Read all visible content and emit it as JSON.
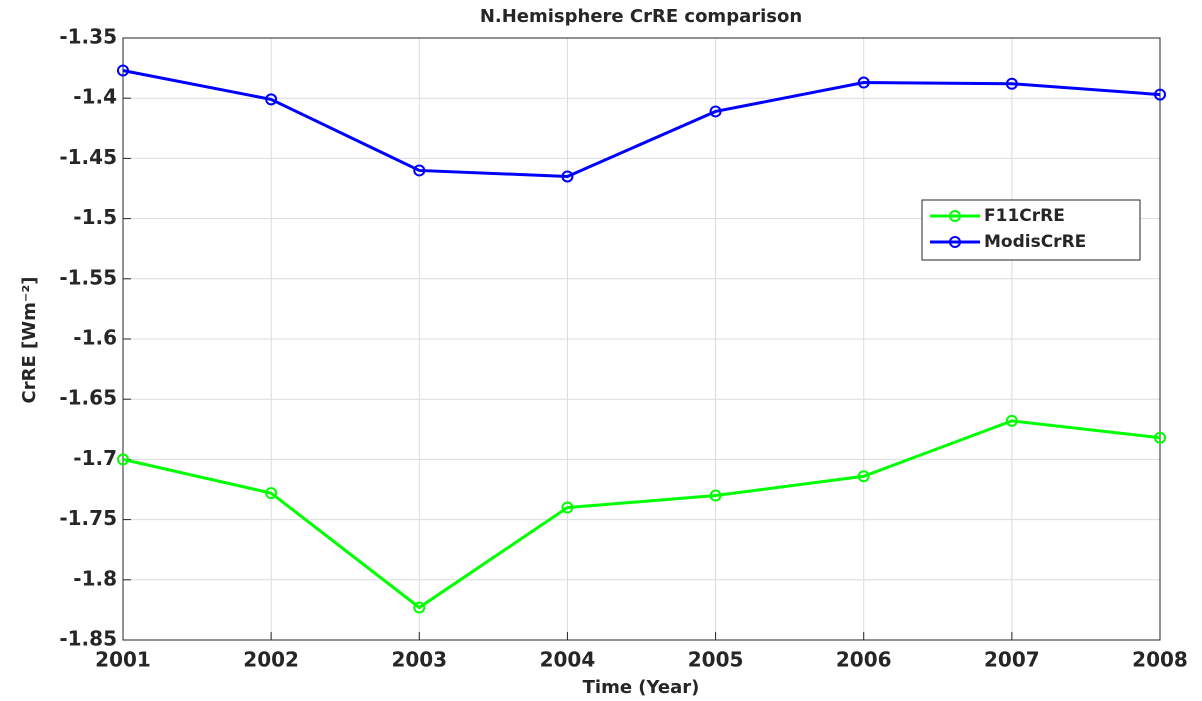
{
  "chart_data": {
    "type": "line",
    "title": "N.Hemisphere CrRE comparison",
    "xlabel": "Time (Year)",
    "ylabel": "CrRE [Wm⁻²]",
    "x": [
      2001,
      2002,
      2003,
      2004,
      2005,
      2006,
      2007,
      2008
    ],
    "series": [
      {
        "name": "F11CrRE",
        "color": "#00ff00",
        "values": [
          -1.7,
          -1.728,
          -1.823,
          -1.74,
          -1.73,
          -1.714,
          -1.668,
          -1.682
        ]
      },
      {
        "name": "ModisCrRE",
        "color": "#0000ff",
        "values": [
          -1.377,
          -1.401,
          -1.46,
          -1.465,
          -1.411,
          -1.387,
          -1.388,
          -1.397
        ]
      }
    ],
    "xlim": [
      2001,
      2008
    ],
    "xticks": [
      2001,
      2002,
      2003,
      2004,
      2005,
      2006,
      2007,
      2008
    ],
    "ylim": [
      -1.85,
      -1.35
    ],
    "yticks": [
      -1.85,
      -1.8,
      -1.75,
      -1.7,
      -1.65,
      -1.6,
      -1.55,
      -1.5,
      -1.45,
      -1.4,
      -1.35
    ],
    "grid": true,
    "legend": "right"
  }
}
